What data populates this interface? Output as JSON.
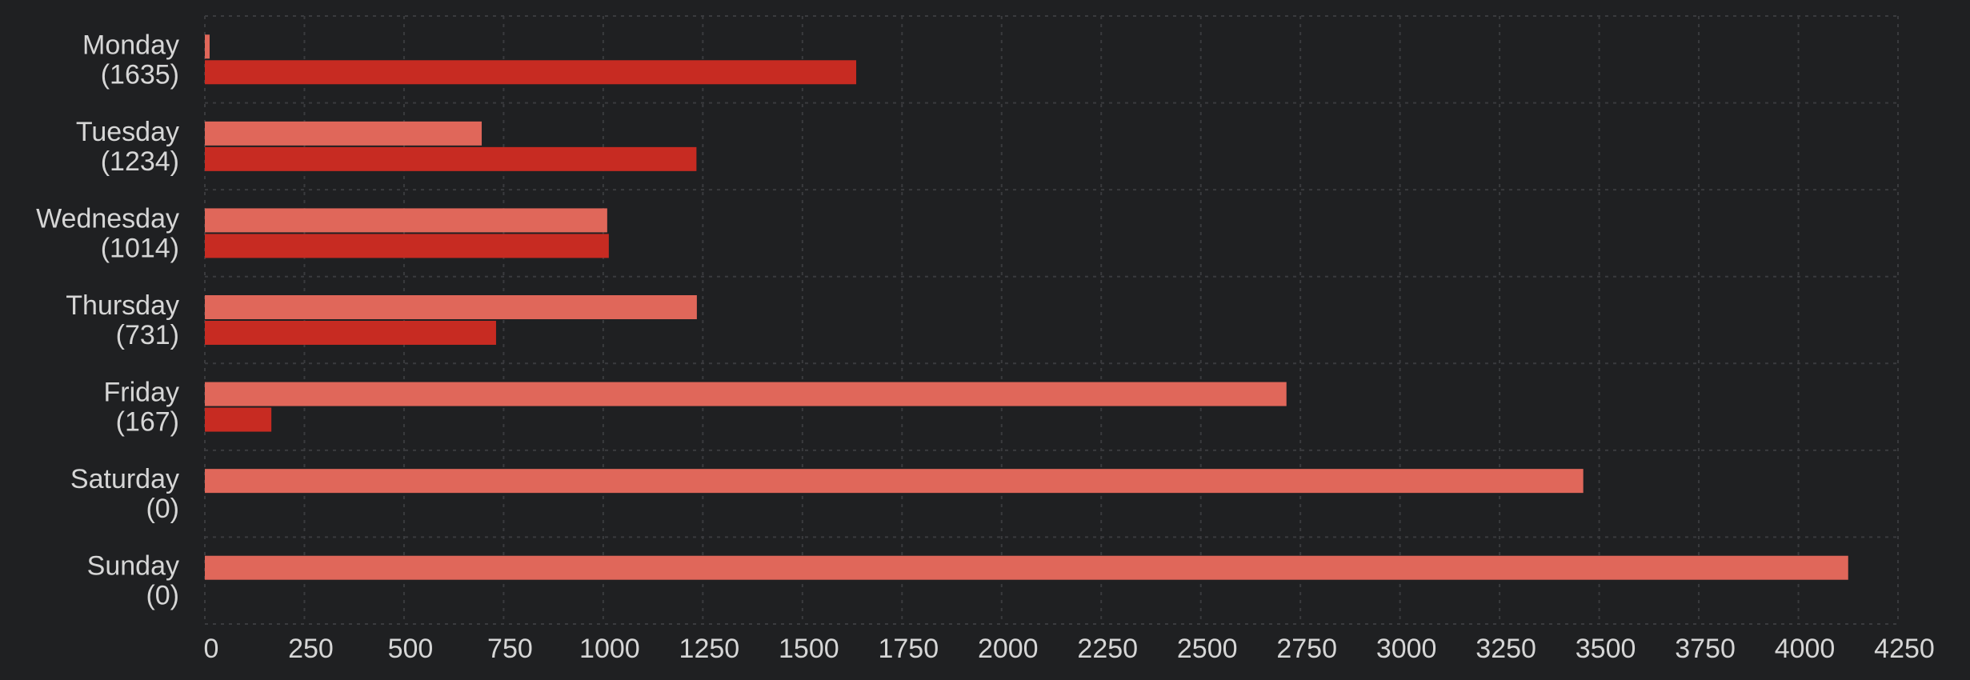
{
  "chart_data": {
    "type": "bar",
    "orientation": "horizontal",
    "categories": [
      "Monday",
      "Tuesday",
      "Wednesday",
      "Thursday",
      "Friday",
      "Saturday",
      "Sunday"
    ],
    "category_counts": [
      "(1635)",
      "(1234)",
      "(1014)",
      "(731)",
      "(167)",
      "(0)",
      "(0)"
    ],
    "series": [
      {
        "color": "#e0675a",
        "values": [
          12,
          695,
          1010,
          1235,
          2715,
          3460,
          4125
        ]
      },
      {
        "color": "#c72b22",
        "values": [
          1635,
          1234,
          1014,
          731,
          167,
          0,
          0
        ]
      }
    ],
    "x_ticks": [
      "0",
      "250",
      "500",
      "750",
      "1000",
      "1250",
      "1500",
      "1750",
      "2000",
      "2250",
      "2500",
      "2750",
      "3000",
      "3250",
      "3500",
      "3750",
      "4000",
      "4250"
    ],
    "xlim": [
      0,
      4250
    ],
    "grid": true,
    "title": "",
    "xlabel": "",
    "ylabel": ""
  }
}
